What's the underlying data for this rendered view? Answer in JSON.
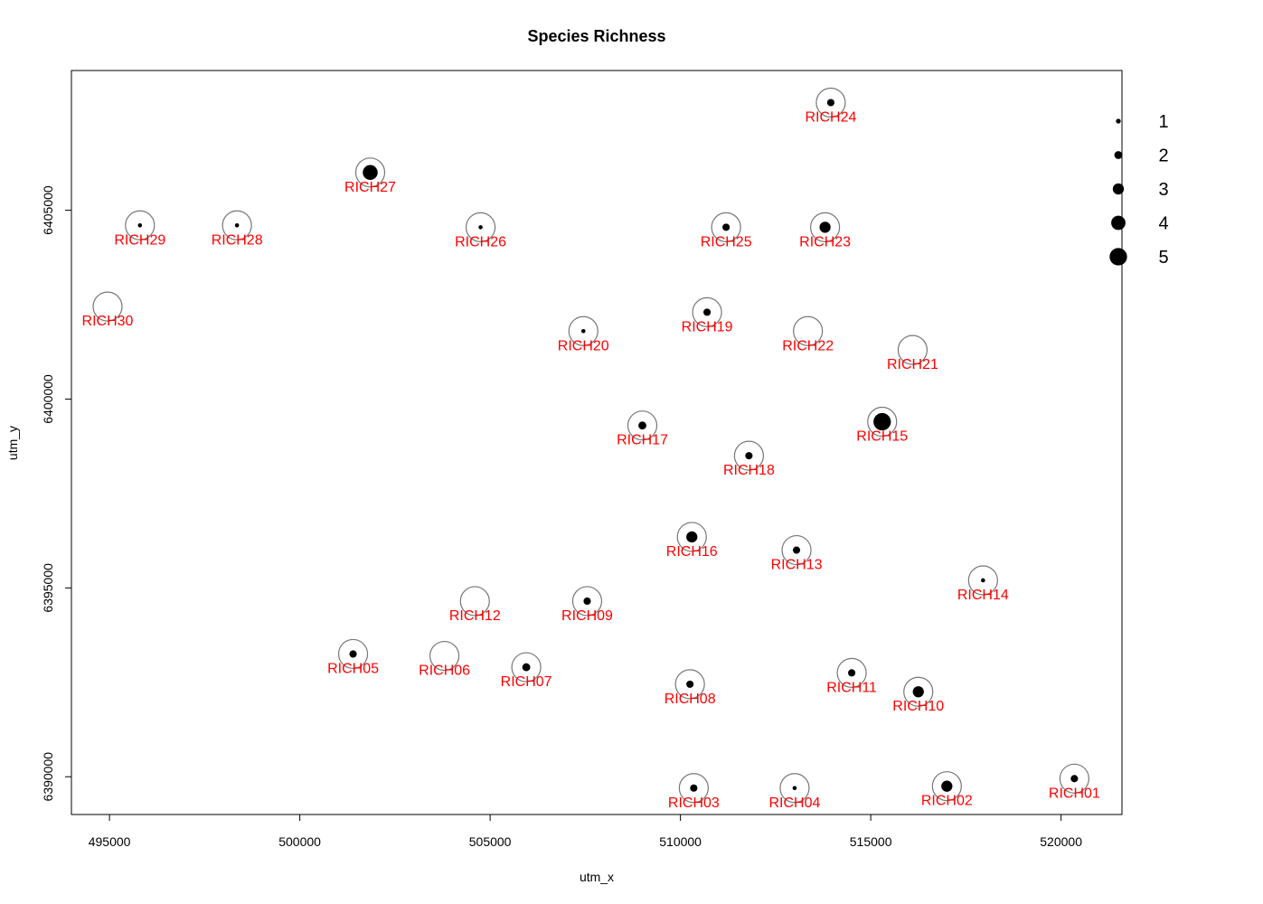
{
  "chart_data": {
    "type": "scatter",
    "title": "Species Richness",
    "xlabel": "utm_x",
    "ylabel": "utm_y",
    "xlim": [
      494000,
      521600
    ],
    "ylim": [
      6389000,
      6408700
    ],
    "x_ticks": [
      495000,
      500000,
      505000,
      510000,
      515000,
      520000
    ],
    "x_tick_labels": [
      "495000",
      "500000",
      "505000",
      "510000",
      "515000",
      "520000"
    ],
    "y_ticks": [
      6390000,
      6395000,
      6400000,
      6405000
    ],
    "y_tick_labels": [
      "6390000",
      "6395000",
      "6400000",
      "6405000"
    ],
    "grid": false,
    "legend_position": "right",
    "legend": {
      "values": [
        1,
        2,
        3,
        4,
        5
      ],
      "labels": [
        "1",
        "2",
        "3",
        "4",
        "5"
      ]
    },
    "label_color": "#ff0000",
    "point_color": "#000000",
    "ring_color": "#777777",
    "points": [
      {
        "label": "RICH01",
        "x": 520350,
        "y": 6389950,
        "richness": 1.8
      },
      {
        "label": "RICH02",
        "x": 517000,
        "y": 6389750,
        "richness": 3.0
      },
      {
        "label": "RICH03",
        "x": 510350,
        "y": 6389700,
        "richness": 1.8
      },
      {
        "label": "RICH04",
        "x": 513000,
        "y": 6389700,
        "richness": 0.8
      },
      {
        "label": "RICH05",
        "x": 501400,
        "y": 6393250,
        "richness": 1.8
      },
      {
        "label": "RICH06",
        "x": 503800,
        "y": 6393200,
        "richness": 0
      },
      {
        "label": "RICH07",
        "x": 505950,
        "y": 6392900,
        "richness": 2.0
      },
      {
        "label": "RICH08",
        "x": 510250,
        "y": 6392450,
        "richness": 1.8
      },
      {
        "label": "RICH09",
        "x": 507550,
        "y": 6394650,
        "richness": 1.8
      },
      {
        "label": "RICH10",
        "x": 516250,
        "y": 6392250,
        "richness": 3.0
      },
      {
        "label": "RICH11",
        "x": 514500,
        "y": 6392750,
        "richness": 1.8
      },
      {
        "label": "RICH12",
        "x": 504600,
        "y": 6394650,
        "richness": 0
      },
      {
        "label": "RICH13",
        "x": 513050,
        "y": 6396000,
        "richness": 1.8
      },
      {
        "label": "RICH14",
        "x": 517950,
        "y": 6395200,
        "richness": 0.8
      },
      {
        "label": "RICH15",
        "x": 515300,
        "y": 6399400,
        "richness": 5.0
      },
      {
        "label": "RICH16",
        "x": 510300,
        "y": 6396350,
        "richness": 3.0
      },
      {
        "label": "RICH17",
        "x": 509000,
        "y": 6399300,
        "richness": 2.0
      },
      {
        "label": "RICH18",
        "x": 511800,
        "y": 6398500,
        "richness": 1.8
      },
      {
        "label": "RICH19",
        "x": 510700,
        "y": 6402300,
        "richness": 1.8
      },
      {
        "label": "RICH20",
        "x": 507450,
        "y": 6401800,
        "richness": 0.8
      },
      {
        "label": "RICH21",
        "x": 516100,
        "y": 6401300,
        "richness": 0
      },
      {
        "label": "RICH22",
        "x": 513350,
        "y": 6401800,
        "richness": 0
      },
      {
        "label": "RICH23",
        "x": 513800,
        "y": 6404550,
        "richness": 3.0
      },
      {
        "label": "RICH24",
        "x": 513950,
        "y": 6407850,
        "richness": 1.8
      },
      {
        "label": "RICH25",
        "x": 511200,
        "y": 6404550,
        "richness": 1.8
      },
      {
        "label": "RICH26",
        "x": 504750,
        "y": 6404550,
        "richness": 0.8
      },
      {
        "label": "RICH27",
        "x": 501850,
        "y": 6406000,
        "richness": 4.2
      },
      {
        "label": "RICH28",
        "x": 498350,
        "y": 6404600,
        "richness": 0.8
      },
      {
        "label": "RICH29",
        "x": 495800,
        "y": 6404600,
        "richness": 0.8
      },
      {
        "label": "RICH30",
        "x": 494950,
        "y": 6402450,
        "richness": 0
      }
    ]
  }
}
